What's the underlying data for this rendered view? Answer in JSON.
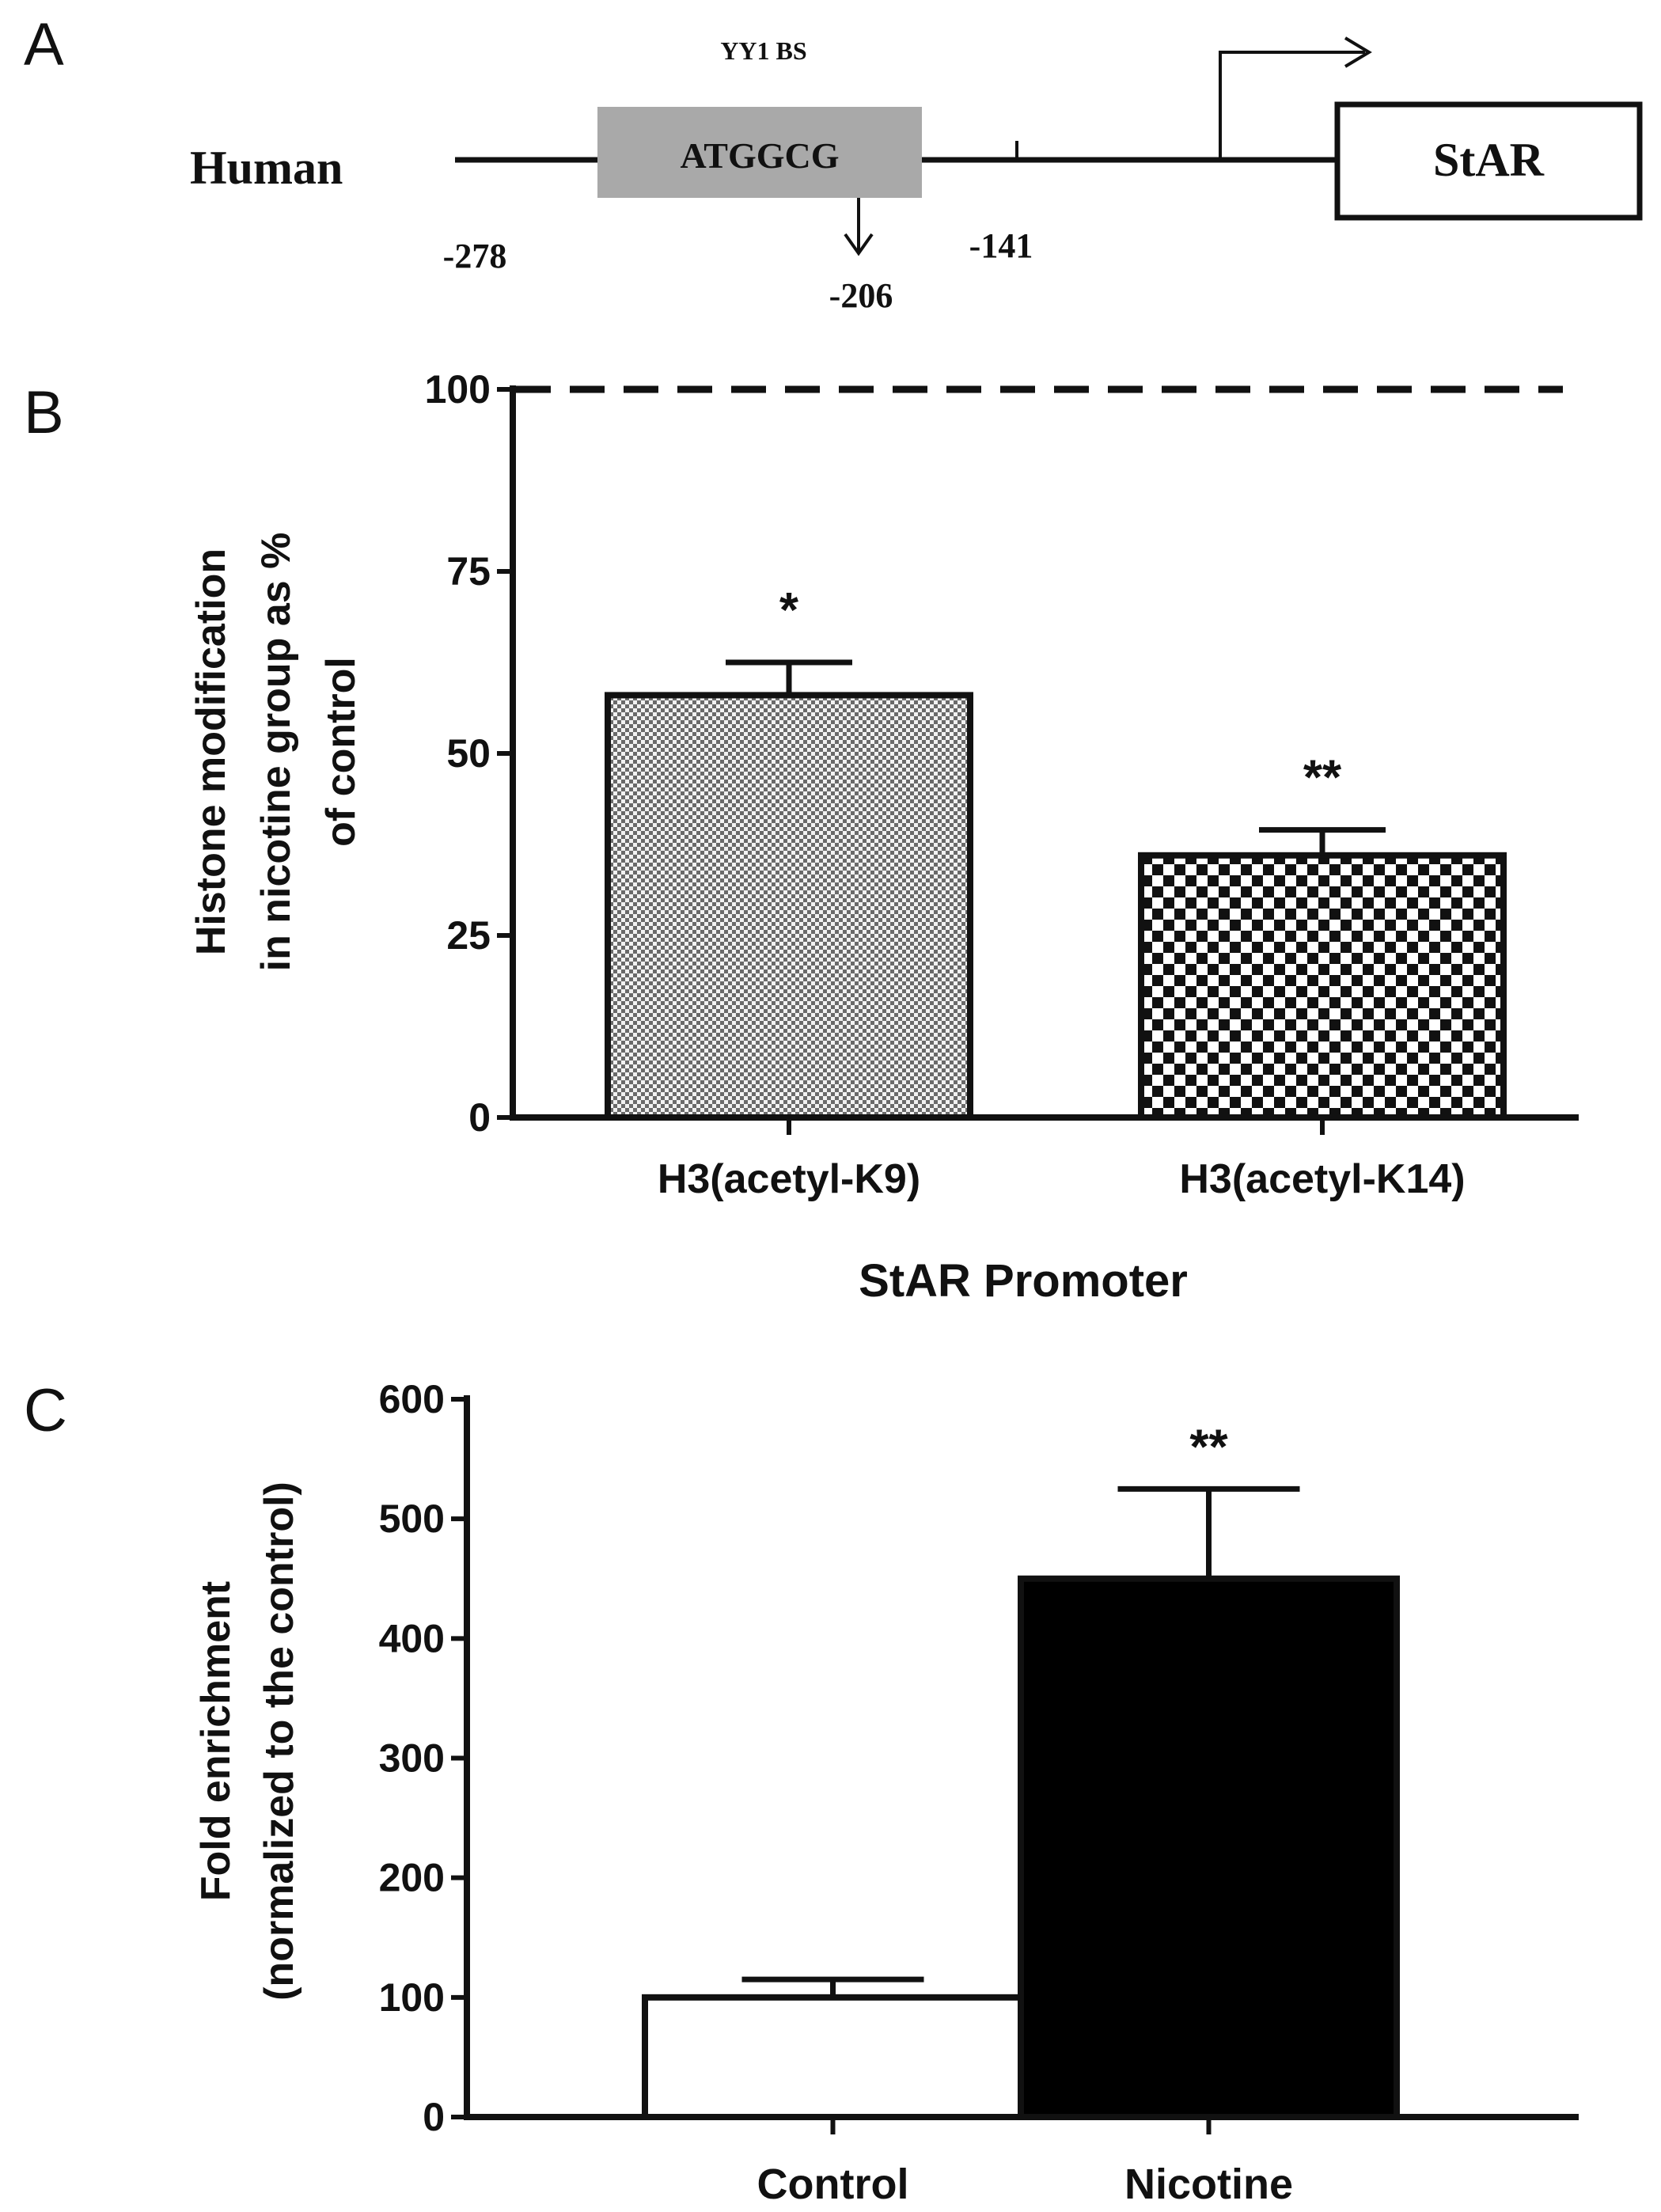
{
  "panels": {
    "a": {
      "label": "A",
      "species_label": "Human",
      "binding_site_label": "YY1 BS",
      "binding_site_sequence": "ATGGCG",
      "gene_label": "StAR",
      "positions": [
        "-278",
        "-206",
        "-141"
      ]
    },
    "b": {
      "label": "B"
    },
    "c": {
      "label": "C"
    }
  },
  "chart_data": [
    {
      "panel": "B",
      "type": "bar",
      "categories": [
        "H3(acetyl-K9)",
        "H3(acetyl-K14)"
      ],
      "values": [
        58,
        36
      ],
      "errors": [
        4.5,
        3.5
      ],
      "significance": [
        "*",
        "**"
      ],
      "reference_line": 100,
      "xlabel": "StAR Promoter",
      "ylabel_lines": [
        "Histone modification",
        "in nicotine group as %",
        "of control"
      ],
      "ylim": [
        0,
        100
      ],
      "yticks": [
        0,
        25,
        50,
        75,
        100
      ],
      "fills": [
        "fine-checker",
        "coarse-checker"
      ],
      "grid": false,
      "legend": "none"
    },
    {
      "panel": "C",
      "type": "bar",
      "categories": [
        "Control",
        "Nicotine"
      ],
      "values": [
        100,
        450
      ],
      "errors": [
        15,
        75
      ],
      "significance": [
        "",
        "**"
      ],
      "ylabel_lines": [
        "Fold enrichment",
        "(normalized to the control)"
      ],
      "ylim": [
        0,
        600
      ],
      "yticks": [
        0,
        100,
        200,
        300,
        400,
        500,
        600
      ],
      "colors": [
        "#ffffff",
        "#000000"
      ],
      "grid": false,
      "legend": "none"
    }
  ]
}
